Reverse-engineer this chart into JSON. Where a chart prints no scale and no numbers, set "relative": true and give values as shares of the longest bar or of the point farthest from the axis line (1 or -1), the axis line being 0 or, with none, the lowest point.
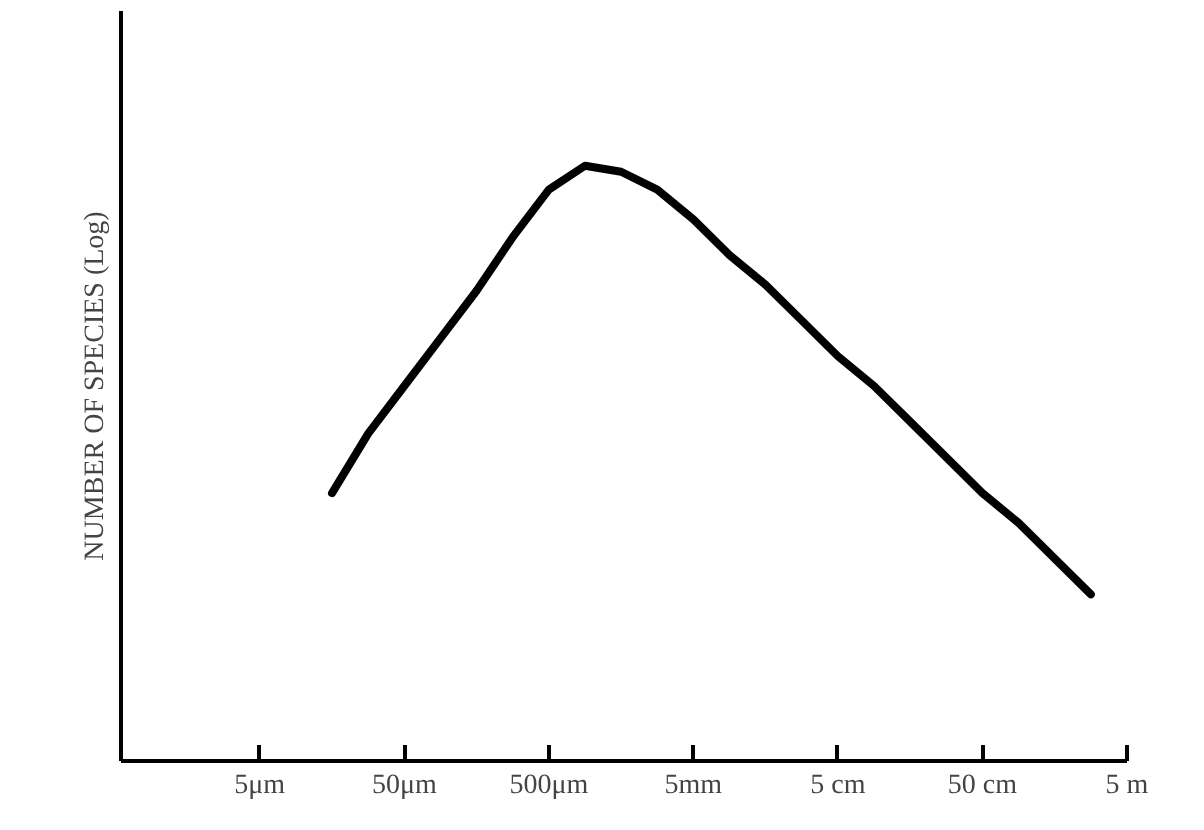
{
  "chart_data": {
    "type": "line",
    "ylabel": "NUMBER OF SPECIES (Log)",
    "relative": true,
    "grid": false,
    "marker": "none",
    "line_style": "solid",
    "categories": [
      "5μm",
      null,
      null,
      null,
      "50μm",
      null,
      null,
      null,
      "500μm",
      null,
      null,
      null,
      "5mm",
      null,
      null,
      null,
      "5 cm",
      null,
      null,
      null,
      "50 cm",
      null,
      null,
      null,
      "5 m"
    ],
    "series": [
      {
        "color": "#000000",
        "values": [
          null,
          null,
          0.45,
          0.55,
          0.63,
          0.71,
          0.79,
          0.88,
          0.96,
          1.0,
          0.99,
          0.96,
          0.91,
          0.85,
          0.8,
          0.74,
          0.68,
          0.63,
          0.57,
          0.51,
          0.45,
          0.4,
          0.34,
          0.28,
          null
        ]
      }
    ]
  }
}
